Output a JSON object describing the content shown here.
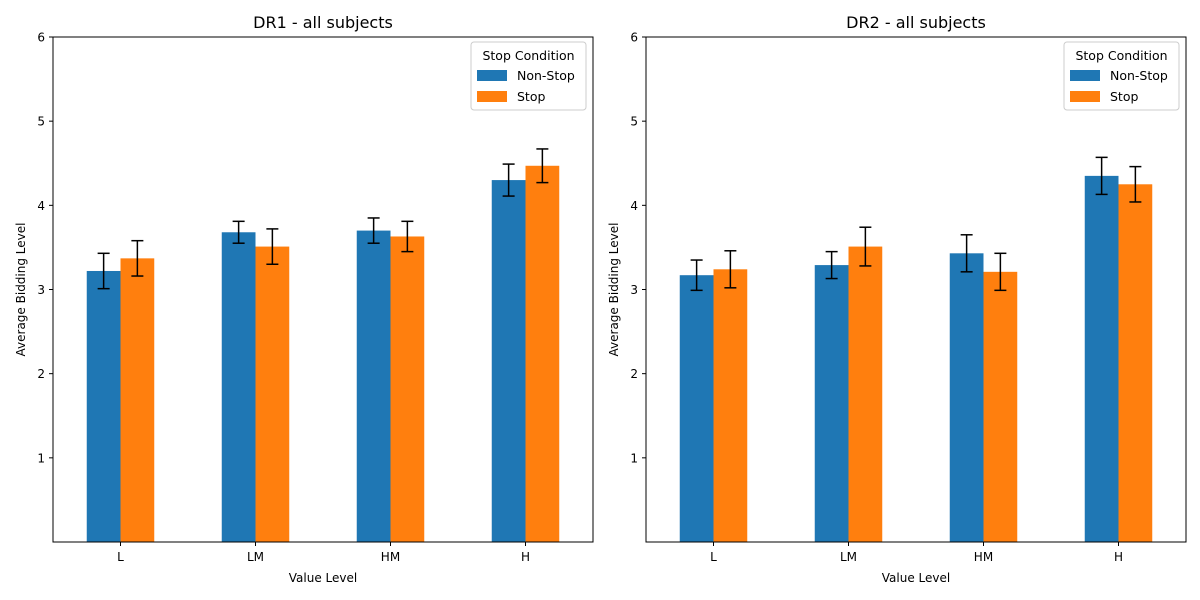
{
  "legend_title": "Stop Condition",
  "series_colors": [
    "#1f77b4",
    "#ff7f0e"
  ],
  "chart_data": [
    {
      "type": "bar",
      "title": "DR1 - all subjects",
      "xlabel": "Value Level",
      "ylabel": "Average Bidding Level",
      "categories": [
        "L",
        "LM",
        "HM",
        "H"
      ],
      "ylim": [
        0,
        6
      ],
      "yticks": [
        "1",
        "2",
        "3",
        "4",
        "5",
        "6"
      ],
      "legend_position": "top-right",
      "series": [
        {
          "name": "Non-Stop",
          "values": [
            3.22,
            3.68,
            3.7,
            4.3
          ],
          "errors": [
            0.21,
            0.13,
            0.15,
            0.19
          ]
        },
        {
          "name": "Stop",
          "values": [
            3.37,
            3.51,
            3.63,
            4.47
          ],
          "errors": [
            0.21,
            0.21,
            0.18,
            0.2
          ]
        }
      ]
    },
    {
      "type": "bar",
      "title": "DR2 - all subjects",
      "xlabel": "Value Level",
      "ylabel": "Average Bidding Level",
      "categories": [
        "L",
        "LM",
        "HM",
        "H"
      ],
      "ylim": [
        0,
        6
      ],
      "yticks": [
        "1",
        "2",
        "3",
        "4",
        "5",
        "6"
      ],
      "legend_position": "top-right",
      "series": [
        {
          "name": "Non-Stop",
          "values": [
            3.17,
            3.29,
            3.43,
            4.35
          ],
          "errors": [
            0.18,
            0.16,
            0.22,
            0.22
          ]
        },
        {
          "name": "Stop",
          "values": [
            3.24,
            3.51,
            3.21,
            4.25
          ],
          "errors": [
            0.22,
            0.23,
            0.22,
            0.21
          ]
        }
      ]
    }
  ]
}
